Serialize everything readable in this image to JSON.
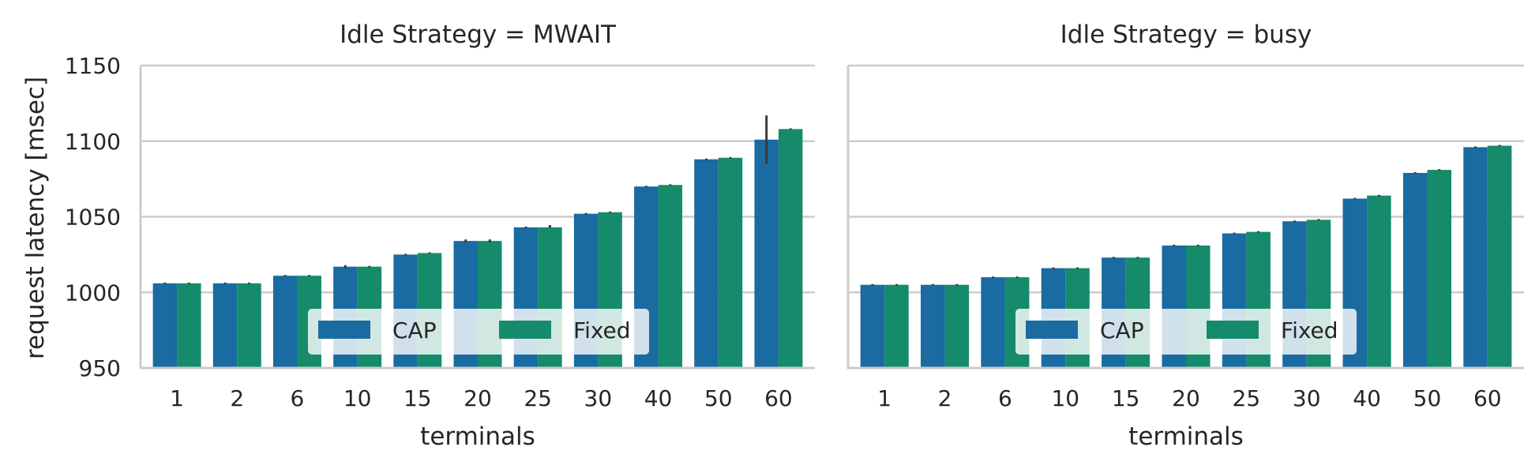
{
  "chart_data": [
    {
      "type": "bar",
      "title": "Idle Strategy = MWAIT",
      "xlabel": "terminals",
      "ylabel": "request latency [msec]",
      "categories": [
        "1",
        "2",
        "6",
        "10",
        "15",
        "20",
        "25",
        "30",
        "40",
        "50",
        "60"
      ],
      "ylim": [
        950,
        1150
      ],
      "yticks": [
        "950",
        "1000",
        "1050",
        "1100",
        "1150"
      ],
      "grid": "horizontal",
      "legend_position": "lower-center",
      "series": [
        {
          "name": "CAP",
          "color": "#1a6ba1",
          "values": [
            1006,
            1006,
            1011,
            1017,
            1025,
            1034,
            1043,
            1052,
            1070,
            1088,
            1101
          ],
          "err_low": [
            1005.5,
            1005.5,
            1010.5,
            1016,
            1024.5,
            1033,
            1042.5,
            1051.5,
            1069.5,
            1087.5,
            1085
          ],
          "err_high": [
            1006.5,
            1006.5,
            1011.5,
            1018,
            1025.5,
            1035,
            1043.5,
            1052.5,
            1070.5,
            1088.5,
            1117
          ]
        },
        {
          "name": "Fixed",
          "color": "#158b6c",
          "values": [
            1006,
            1006,
            1011,
            1017,
            1026,
            1034,
            1043,
            1053,
            1071,
            1089,
            1108
          ],
          "err_low": [
            1005.5,
            1005.5,
            1010.5,
            1016.5,
            1025.5,
            1033,
            1042.5,
            1052.5,
            1070.5,
            1088.5,
            1107.5
          ],
          "err_high": [
            1006.5,
            1006.5,
            1011.5,
            1017.5,
            1026.5,
            1035,
            1044.5,
            1053.5,
            1071.5,
            1089.5,
            1108.5
          ]
        }
      ]
    },
    {
      "type": "bar",
      "title": "Idle Strategy = busy",
      "xlabel": "terminals",
      "ylabel": "",
      "categories": [
        "1",
        "2",
        "6",
        "10",
        "15",
        "20",
        "25",
        "30",
        "40",
        "50",
        "60"
      ],
      "ylim": [
        950,
        1150
      ],
      "grid": "horizontal",
      "legend_position": "lower-center",
      "series": [
        {
          "name": "CAP",
          "color": "#1a6ba1",
          "values": [
            1005,
            1005,
            1010,
            1016,
            1023,
            1031,
            1039,
            1047,
            1062,
            1079,
            1096
          ],
          "err_low": [
            1004.5,
            1004.5,
            1009.5,
            1015.5,
            1022.5,
            1030.5,
            1038.5,
            1046.5,
            1061.5,
            1078.5,
            1095.5
          ],
          "err_high": [
            1005.5,
            1005.5,
            1010.5,
            1016.5,
            1023.5,
            1031.5,
            1039.5,
            1047.5,
            1062.5,
            1079.5,
            1096.5
          ]
        },
        {
          "name": "Fixed",
          "color": "#158b6c",
          "values": [
            1005,
            1005,
            1010,
            1016,
            1023,
            1031,
            1040,
            1048,
            1064,
            1081,
            1097
          ],
          "err_low": [
            1004.5,
            1004.5,
            1009.5,
            1015.5,
            1022.5,
            1030.5,
            1039.5,
            1047.5,
            1063.5,
            1080.5,
            1096.5
          ],
          "err_high": [
            1005.5,
            1005.5,
            1010.5,
            1016.5,
            1023.5,
            1031.5,
            1040.5,
            1048.5,
            1064.5,
            1081.5,
            1097.5
          ]
        }
      ]
    }
  ]
}
